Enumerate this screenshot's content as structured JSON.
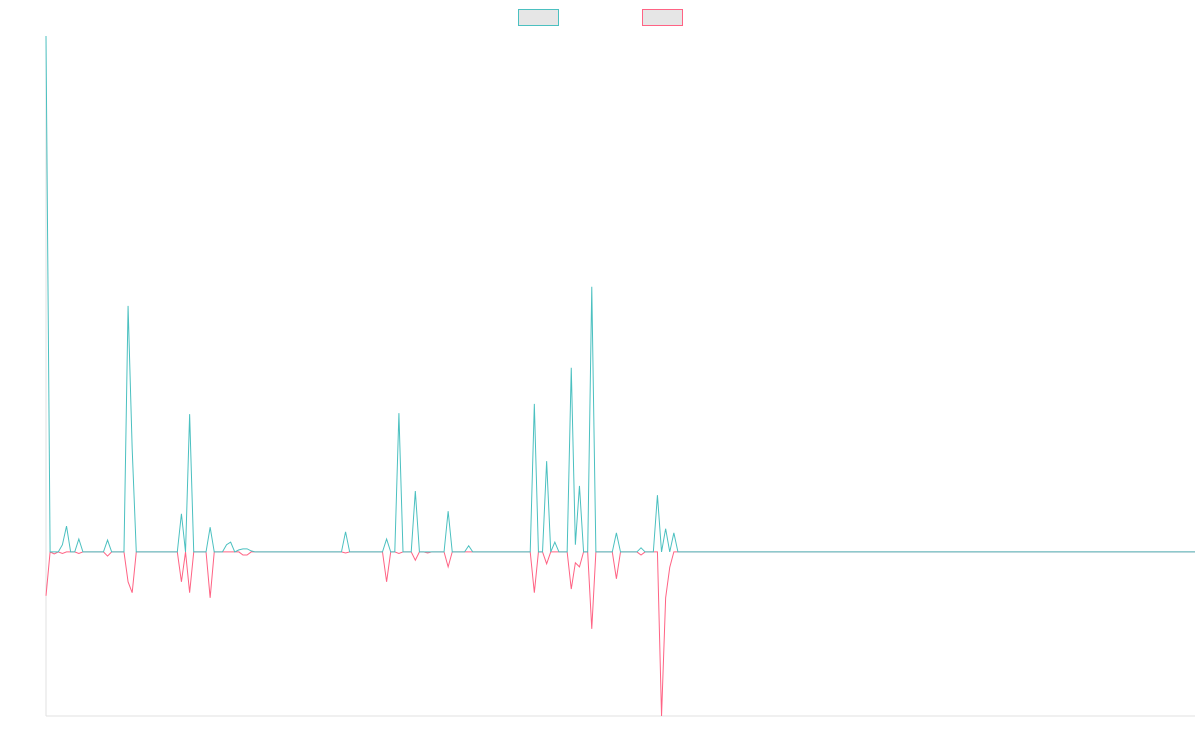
{
  "chart_data": {
    "type": "line",
    "ylim": [
      -31.8,
      100
    ],
    "legend": "top",
    "series": [
      {
        "color": "#4bc0c0",
        "values": [
          100,
          0,
          0,
          0,
          1.4,
          5,
          0,
          0,
          2.5,
          0,
          0,
          0,
          0,
          0,
          0,
          2.3,
          0,
          0,
          0,
          0,
          47.7,
          20,
          0,
          0,
          0,
          0,
          0,
          0,
          0,
          0,
          0,
          0,
          0,
          7.4,
          0,
          26.7,
          0,
          0,
          0,
          0,
          4.8,
          0,
          0,
          0,
          1.4,
          1.9,
          0,
          0.4,
          0.6,
          0.6,
          0.2,
          0,
          0,
          0,
          0,
          0,
          0,
          0,
          0,
          0,
          0,
          0,
          0,
          0,
          0,
          0,
          0,
          0,
          0,
          0,
          0,
          0,
          0,
          3.9,
          0,
          0,
          0,
          0,
          0,
          0,
          0,
          0,
          0,
          2.5,
          0,
          0,
          26.9,
          0,
          0,
          0,
          11.8,
          0,
          0,
          0,
          0,
          0,
          0,
          0,
          7.9,
          0,
          0,
          0,
          0,
          1.2,
          0,
          0,
          0,
          0,
          0,
          0,
          0,
          0,
          0,
          0,
          0,
          0,
          0,
          0,
          0,
          28.7,
          0,
          0,
          17.6,
          0,
          1.9,
          0,
          0,
          0,
          35.7,
          1.4,
          12.8,
          0,
          0,
          51.4,
          0,
          0,
          0,
          0,
          0,
          3.7,
          0,
          0,
          0,
          0,
          0,
          0.8,
          0,
          0,
          0,
          11,
          0,
          4.5,
          0,
          3.7,
          0,
          0,
          0,
          0,
          0,
          0,
          0,
          0,
          0,
          0,
          0,
          0,
          0,
          0,
          0,
          0,
          0,
          0,
          0,
          0,
          0,
          0,
          0,
          0,
          0,
          0,
          0,
          0,
          0,
          0,
          0,
          0,
          0,
          0,
          0,
          0,
          0,
          0,
          0,
          0,
          0,
          0,
          0,
          0,
          0,
          0,
          0,
          0,
          0,
          0,
          0,
          0,
          0,
          0,
          0,
          0,
          0,
          0,
          0,
          0,
          0,
          0,
          0,
          0,
          0,
          0,
          0,
          0,
          0,
          0,
          0,
          0,
          0,
          0,
          0,
          0,
          0,
          0,
          0,
          0,
          0,
          0,
          0,
          0,
          0,
          0,
          0,
          0,
          0,
          0,
          0,
          0,
          0,
          0,
          0,
          0,
          0,
          0,
          0,
          0,
          0,
          0,
          0,
          0,
          0,
          0,
          0,
          0,
          0,
          0,
          0,
          0,
          0,
          0,
          0,
          0,
          0,
          0,
          0,
          0,
          0,
          0,
          0,
          0,
          0,
          0,
          0
        ]
      },
      {
        "color": "#ff6384",
        "values": [
          -8.5,
          0,
          -0.4,
          0,
          -0.3,
          0,
          0,
          0,
          -0.3,
          0,
          0,
          0,
          0,
          0,
          0,
          -0.8,
          0,
          0,
          0,
          0,
          -5.8,
          -7.9,
          0,
          0,
          0,
          0,
          0,
          0,
          0,
          0,
          0,
          0,
          0,
          -5.8,
          0,
          -7.9,
          0,
          0,
          0,
          0,
          -8.9,
          0,
          0,
          0,
          0,
          0,
          0,
          0,
          -0.6,
          -0.6,
          0,
          0,
          0,
          0,
          0,
          0,
          0,
          0,
          0,
          0,
          0,
          0,
          0,
          0,
          0,
          0,
          0,
          0,
          0,
          0,
          0,
          0,
          0,
          -0.2,
          0,
          0,
          0,
          0,
          0,
          0,
          0,
          0,
          0,
          -5.8,
          0,
          0,
          -0.3,
          0,
          0,
          0,
          -1.6,
          0,
          0,
          -0.2,
          0,
          0,
          0,
          0,
          -2.9,
          0,
          0,
          0,
          0,
          0,
          0,
          0,
          0,
          0,
          0,
          0,
          0,
          0,
          0,
          0,
          0,
          0,
          0,
          0,
          0,
          -7.9,
          0,
          0,
          -2.3,
          0,
          0,
          0,
          0,
          0,
          -7.2,
          -2.1,
          -2.9,
          0,
          0,
          -14.9,
          0,
          0,
          0,
          0,
          0,
          -5.2,
          0,
          0,
          0,
          0,
          0,
          -0.6,
          0,
          0,
          0,
          0,
          -31.8,
          -8.9,
          -3,
          0,
          0,
          0,
          0,
          0,
          0,
          0,
          0,
          0,
          0,
          0,
          0,
          0,
          0,
          0,
          0,
          0,
          0,
          0,
          0,
          0,
          0,
          0,
          0,
          0,
          0,
          0,
          0,
          0,
          0,
          0,
          0,
          0,
          0,
          0,
          0,
          0,
          0,
          0,
          0,
          0,
          0,
          0,
          0,
          0,
          0,
          0,
          0,
          0,
          0,
          0,
          0,
          0,
          0,
          0,
          0,
          0,
          0,
          0,
          0,
          0,
          0,
          0,
          0,
          0,
          0,
          0,
          0,
          0,
          0,
          0,
          0,
          0,
          0,
          0,
          0,
          0,
          0,
          0,
          0,
          0,
          0,
          0,
          0,
          0,
          0,
          0,
          0,
          0,
          0,
          0,
          0,
          0,
          0,
          0,
          0,
          0,
          0,
          0,
          0,
          0,
          0,
          0,
          0,
          0,
          0,
          0,
          0,
          0,
          0,
          0,
          0,
          0,
          0,
          0,
          0,
          0,
          0,
          0,
          0,
          0,
          0,
          0,
          0,
          0,
          0,
          0,
          0
        ]
      }
    ]
  }
}
